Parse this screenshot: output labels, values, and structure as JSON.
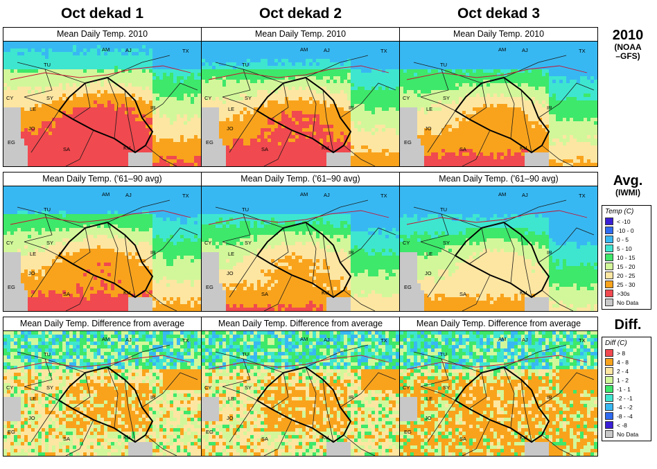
{
  "columns": [
    {
      "header": "Oct dekad 1"
    },
    {
      "header": "Oct dekad 2"
    },
    {
      "header": "Oct dekad 3"
    }
  ],
  "rows": [
    {
      "panel_title": "Mean Daily Temp. 2010",
      "label": "2010",
      "sublabel": "(NOAA\n–GFS)"
    },
    {
      "panel_title": "Mean Daily Temp. ('61–90 avg)",
      "label": "Avg.",
      "sublabel": "(IWMI)"
    },
    {
      "panel_title": "Mean Daily Temp. Difference from average",
      "label": "Diff.",
      "sublabel": ""
    }
  ],
  "map_labels": [
    "AM",
    "AJ",
    "TX",
    "TU",
    "SY",
    "CY",
    "LE",
    "IR",
    "JO",
    "EG",
    "SA",
    "KU"
  ],
  "temp_legend": {
    "title": "Temp (C)",
    "items": [
      {
        "label": "< -10",
        "color": "#3a1fd6"
      },
      {
        "label": "-10 - 0",
        "color": "#2f6bf0"
      },
      {
        "label": "0 - 5",
        "color": "#38b8f2"
      },
      {
        "label": "5 - 10",
        "color": "#3ee6d0"
      },
      {
        "label": "10 - 15",
        "color": "#3ee86a"
      },
      {
        "label": "15 - 20",
        "color": "#d2f79a"
      },
      {
        "label": "20 - 25",
        "color": "#fde6a2"
      },
      {
        "label": "25 - 30",
        "color": "#f9a31c"
      },
      {
        "label": ">30s",
        "color": "#f0494f"
      },
      {
        "label": "No Data",
        "color": "#c8c8c8"
      }
    ]
  },
  "diff_legend": {
    "title": "Diff (C)",
    "items": [
      {
        "label": "> 8",
        "color": "#f0494f"
      },
      {
        "label": "4 - 8",
        "color": "#f9a31c"
      },
      {
        "label": "2 - 4",
        "color": "#fde6a2"
      },
      {
        "label": "1 - 2",
        "color": "#d2f79a"
      },
      {
        "label": "-1 - 1",
        "color": "#3ee86a"
      },
      {
        "label": "-2 - -1",
        "color": "#3ee6d0"
      },
      {
        "label": "-4 - -2",
        "color": "#38b8f2"
      },
      {
        "label": "-8 - -4",
        "color": "#2f6bf0"
      },
      {
        "label": "< -8",
        "color": "#3a1fd6"
      },
      {
        "label": "No Data",
        "color": "#c8c8c8"
      }
    ]
  }
}
